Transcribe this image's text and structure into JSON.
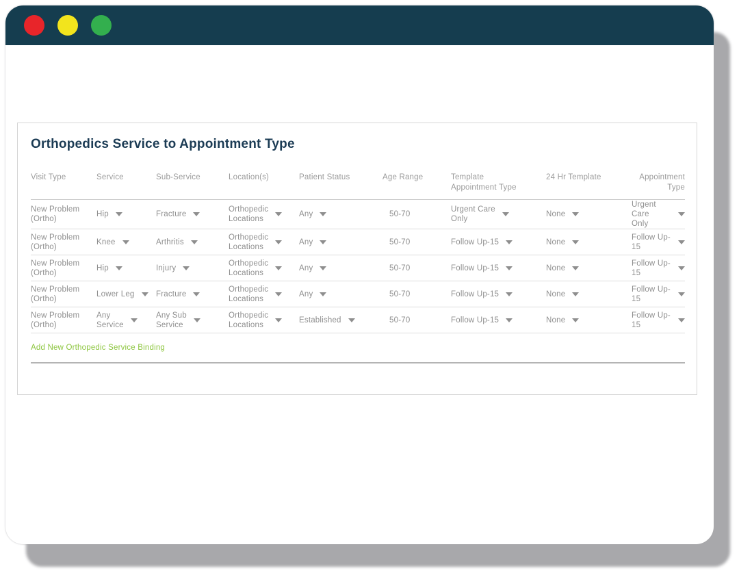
{
  "titlebar": {
    "buttons": [
      {
        "name": "close",
        "color": "#E8252A"
      },
      {
        "name": "minimize",
        "color": "#F2E41D"
      },
      {
        "name": "zoom",
        "color": "#33AF4E"
      }
    ]
  },
  "panel": {
    "title": "Orthopedics Service to Appointment Type",
    "add_link_label": "Add New Orthopedic Service Binding"
  },
  "table": {
    "columns": [
      "Visit Type",
      "Service",
      "Sub-Service",
      "Location(s)",
      "Patient Status",
      "Age Range",
      "Template\nAppointment Type",
      "24 Hr Template",
      "Appointment Type"
    ],
    "rows": [
      {
        "visit_type": "New Problem\n(Ortho)",
        "service": "Hip",
        "sub_service": "Fracture",
        "locations": "Orthopedic\nLocations",
        "patient_status": "Any",
        "age_range": "50-70",
        "template_appt_type": "Urgent Care\nOnly",
        "template_24hr": "None",
        "appointment_type": "Urgent Care\nOnly"
      },
      {
        "visit_type": "New Problem\n(Ortho)",
        "service": "Knee",
        "sub_service": "Arthritis",
        "locations": "Orthopedic\nLocations",
        "patient_status": "Any",
        "age_range": "50-70",
        "template_appt_type": "Follow Up-15",
        "template_24hr": "None",
        "appointment_type": "Follow Up-15"
      },
      {
        "visit_type": "New Problem\n(Ortho)",
        "service": "Hip",
        "sub_service": "Injury",
        "locations": "Orthopedic\nLocations",
        "patient_status": "Any",
        "age_range": "50-70",
        "template_appt_type": "Follow Up-15",
        "template_24hr": "None",
        "appointment_type": "Follow Up-15"
      },
      {
        "visit_type": "New Problem\n(Ortho)",
        "service": "Lower Leg",
        "sub_service": "Fracture",
        "locations": "Orthopedic\nLocations",
        "patient_status": "Any",
        "age_range": "50-70",
        "template_appt_type": "Follow Up-15",
        "template_24hr": "None",
        "appointment_type": "Follow Up-15"
      },
      {
        "visit_type": "New Problem\n(Ortho)",
        "service": "Any\nService",
        "sub_service": "Any Sub\nService",
        "locations": "Orthopedic\nLocations",
        "patient_status": "Established",
        "age_range": "50-70",
        "template_appt_type": "Follow Up-15",
        "template_24hr": "None",
        "appointment_type": "Follow Up-15"
      }
    ]
  },
  "colors": {
    "titlebar_background": "#153D4F",
    "title_text": "#1B3B54",
    "link_green": "#8DC63F",
    "muted_text": "#8F8F8F",
    "window_shadow": "#A8A8AB"
  }
}
